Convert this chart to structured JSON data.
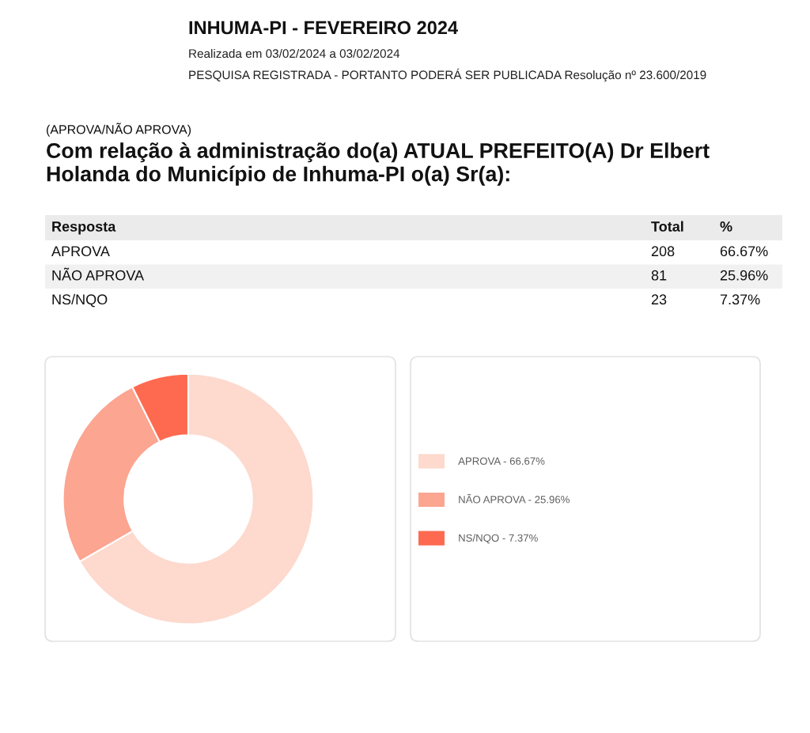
{
  "chart_data": [
    {
      "type": "other",
      "title": "INHUMA-PI - FEVEREIRO 2024",
      "subtitle": "Realizada em 03/02/2024 a 03/02/2024",
      "annotations": [
        "PESQUISA REGISTRADA - PORTANTO PODERÁ SER PUBLICADA Resolução nº 23.600/2019",
        "(APROVA/NÃO APROVA)",
        "Com relação à administração do(a) ATUAL PREFEITO(A) Dr Elbert Holanda do Município de Inhuma-PI o(a) Sr(a):",
        "Resposta"
      ],
      "categories": [
        "APROVA",
        "NÃO APROVA",
        "NS/NQO"
      ],
      "series": [
        {
          "name": "Total",
          "values": [
            208,
            81,
            23
          ]
        },
        {
          "name": "%",
          "values": [
            66.67,
            25.96,
            7.37
          ],
          "value_labels": [
            "66.67%",
            "25.96%",
            "7.37%"
          ]
        }
      ],
      "data_labels": true
    },
    {
      "type": "donut",
      "categories": [
        "APROVA - 66.67%",
        "NÃO APROVA - 25.96%",
        "NS/NQO - 7.37%"
      ],
      "values": [
        66.67,
        25.96,
        7.37
      ],
      "colors": [
        "#fdd9ce",
        "#fca591",
        "#fe6a50"
      ],
      "legend": "right"
    }
  ]
}
